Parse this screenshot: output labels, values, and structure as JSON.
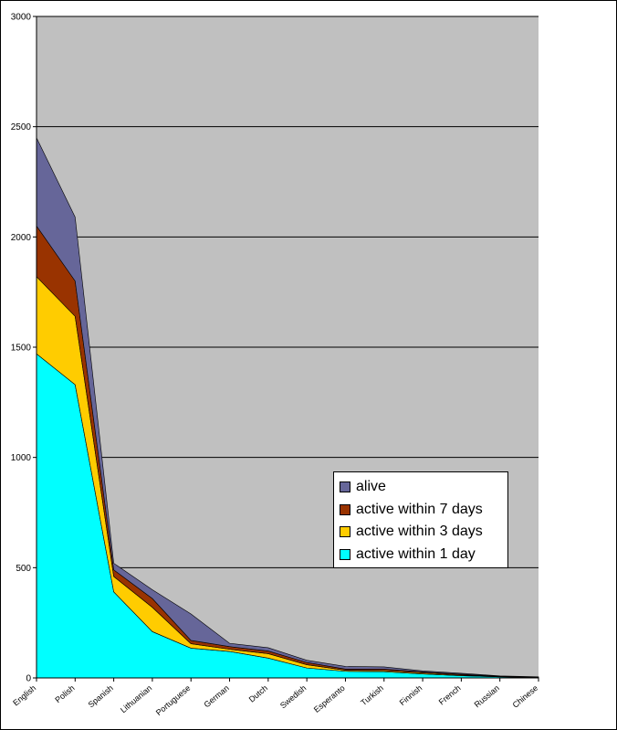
{
  "chart_data": {
    "type": "area",
    "stacked": true,
    "categories": [
      "English",
      "Polish",
      "Spanish",
      "Lithuanian",
      "Portuguese",
      "German",
      "Dutch",
      "Swedish",
      "Esperanto",
      "Turkish",
      "Finnish",
      "French",
      "Russian",
      "Chinese"
    ],
    "series": [
      {
        "name": "active within 1 day",
        "color": "#00FFFF",
        "values": [
          1470,
          1330,
          390,
          210,
          135,
          120,
          90,
          45,
          30,
          28,
          18,
          10,
          5,
          2
        ]
      },
      {
        "name": "active within 3 days",
        "color": "#FFCC00",
        "values": [
          350,
          310,
          70,
          110,
          20,
          10,
          20,
          15,
          5,
          5,
          5,
          3,
          1,
          1
        ]
      },
      {
        "name": "active within 7 days",
        "color": "#993300",
        "values": [
          230,
          160,
          30,
          40,
          15,
          12,
          12,
          10,
          5,
          7,
          4,
          4,
          1,
          1
        ]
      },
      {
        "name": "alive",
        "color": "#666699",
        "values": [
          400,
          290,
          30,
          40,
          120,
          15,
          15,
          10,
          12,
          10,
          5,
          4,
          2,
          1
        ]
      }
    ],
    "y_ticks": [
      "0",
      "500",
      "1000",
      "1500",
      "2000",
      "2500",
      "3000"
    ],
    "ylim": [
      0,
      3000
    ],
    "grid": true,
    "plot_background": "#C0C0C0",
    "legend_position": "center-right",
    "legend_order": [
      "alive",
      "active within 7 days",
      "active within 3 days",
      "active within 1 day"
    ]
  }
}
